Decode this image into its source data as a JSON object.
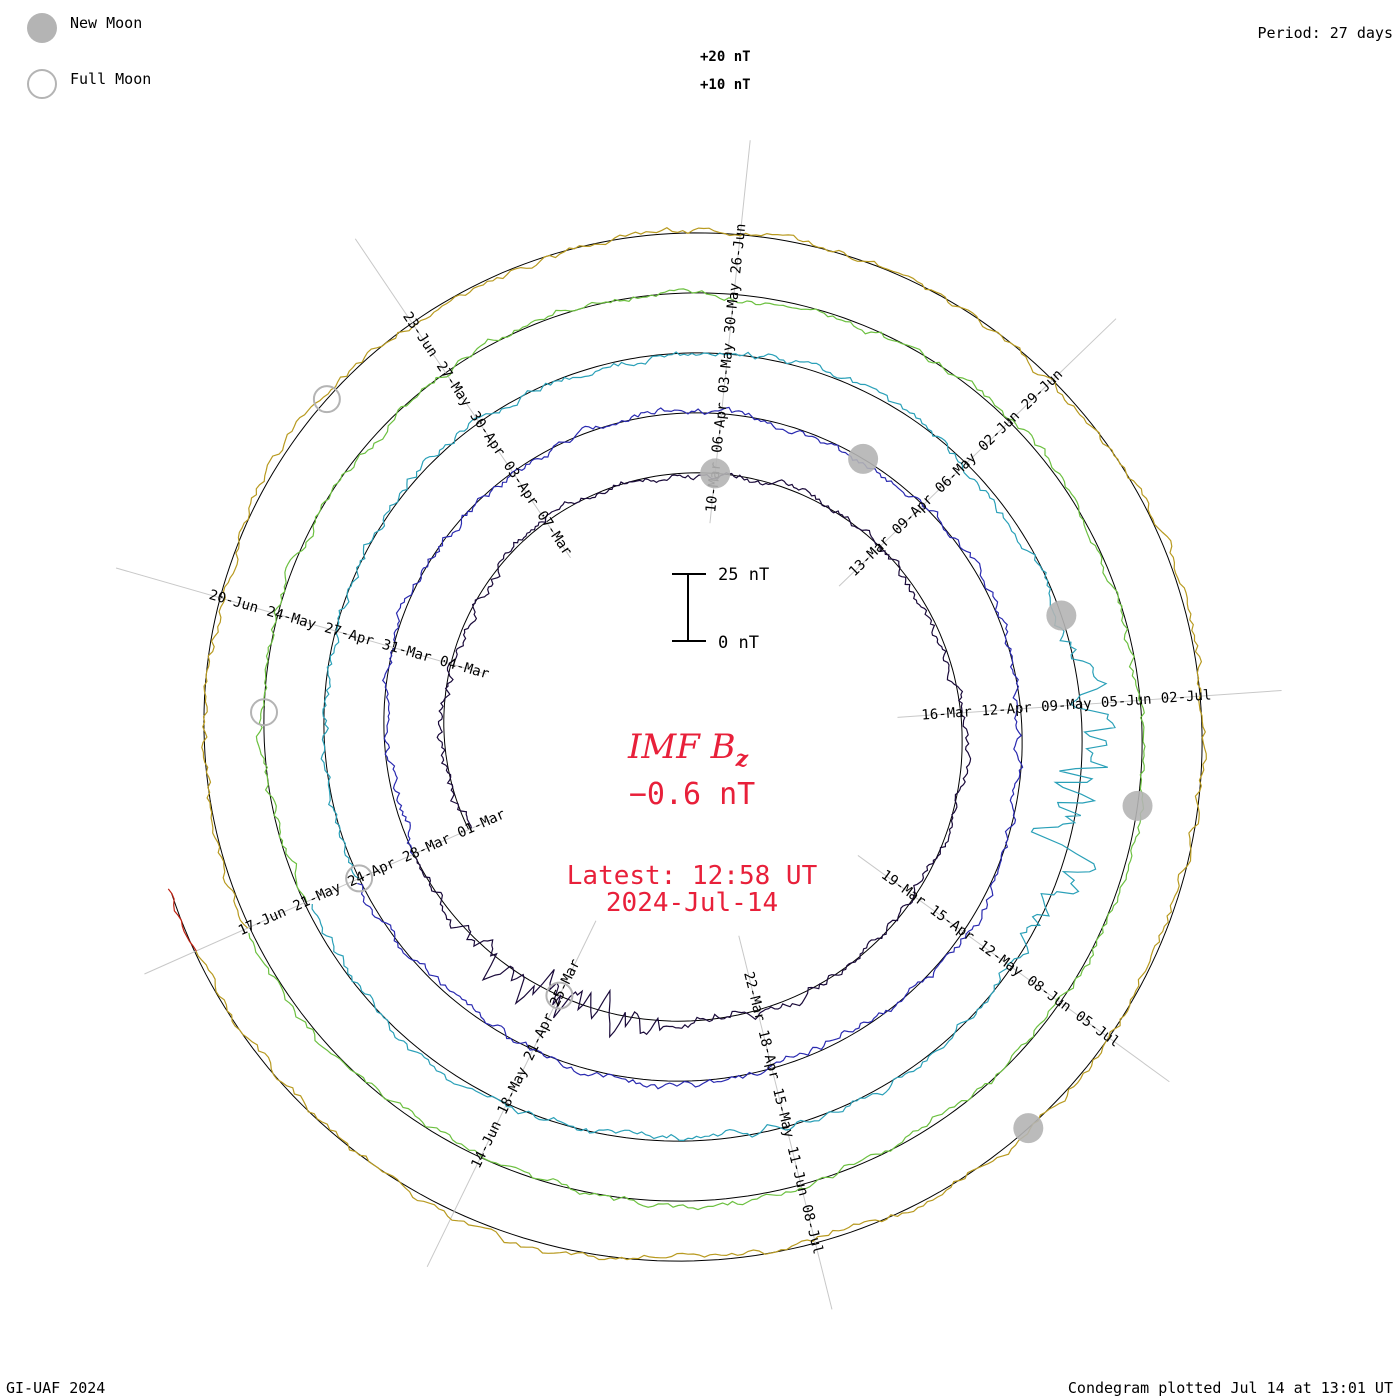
{
  "legend": {
    "new_moon": "New Moon",
    "full_moon": "Full Moon",
    "period": "Period: 27 days"
  },
  "ring_scale": {
    "plus20": "+20 nT",
    "plus10": "+10 nT"
  },
  "scale_bar": {
    "top": "25 nT",
    "bottom": "0 nT"
  },
  "center": {
    "title_main": "IMF B",
    "title_sub": "z",
    "value": "−0.6 nT",
    "latest_time": "Latest: 12:58 UT",
    "latest_date": "2024-Jul-14"
  },
  "footer": {
    "left": "GI-UAF 2024",
    "right": "Condegram plotted Jul 14 at 13:01 UT"
  },
  "colors": {
    "rotations": [
      "#1a0a3a",
      "#2a2ab0",
      "#2aa0b8",
      "#6cc040",
      "#b89a20",
      "#c02010"
    ],
    "grid": "#c8c8c8",
    "moon": "#b4b4b4",
    "accent": "#e8203a"
  },
  "chart_data": {
    "type": "condegram",
    "title": "IMF Bz",
    "current_value_nT": -0.6,
    "period_days": 27,
    "date_labels": [
      {
        "ring": 0,
        "text": "01-Mar"
      },
      {
        "ring": 0,
        "text": "04-Mar"
      },
      {
        "ring": 0,
        "text": "07-Mar"
      },
      {
        "ring": 0,
        "text": "10-Mar"
      },
      {
        "ring": 0,
        "text": "13-Mar"
      },
      {
        "ring": 0,
        "text": "16-Mar"
      },
      {
        "ring": 0,
        "text": "19-Mar"
      },
      {
        "ring": 0,
        "text": "22-Mar"
      },
      {
        "ring": 0,
        "text": "25-Mar"
      },
      {
        "ring": 1,
        "text": "28-Mar"
      },
      {
        "ring": 1,
        "text": "31-Mar"
      },
      {
        "ring": 1,
        "text": "03-Apr"
      },
      {
        "ring": 1,
        "text": "06-Apr"
      },
      {
        "ring": 1,
        "text": "09-Apr"
      },
      {
        "ring": 1,
        "text": "12-Apr"
      },
      {
        "ring": 1,
        "text": "15-Apr"
      },
      {
        "ring": 1,
        "text": "18-Apr"
      },
      {
        "ring": 1,
        "text": "21-Apr"
      },
      {
        "ring": 2,
        "text": "24-Apr"
      },
      {
        "ring": 2,
        "text": "27-Apr"
      },
      {
        "ring": 2,
        "text": "30-Apr"
      },
      {
        "ring": 2,
        "text": "03-May"
      },
      {
        "ring": 2,
        "text": "06-May"
      },
      {
        "ring": 2,
        "text": "09-May"
      },
      {
        "ring": 2,
        "text": "12-May"
      },
      {
        "ring": 2,
        "text": "15-May"
      },
      {
        "ring": 2,
        "text": "18-May"
      },
      {
        "ring": 3,
        "text": "21-May"
      },
      {
        "ring": 3,
        "text": "24-May"
      },
      {
        "ring": 3,
        "text": "27-May"
      },
      {
        "ring": 3,
        "text": "30-May"
      },
      {
        "ring": 3,
        "text": "02-Jun"
      },
      {
        "ring": 3,
        "text": "05-Jun"
      },
      {
        "ring": 3,
        "text": "08-Jun"
      },
      {
        "ring": 3,
        "text": "11-Jun"
      },
      {
        "ring": 3,
        "text": "14-Jun"
      },
      {
        "ring": 4,
        "text": "17-Jun"
      },
      {
        "ring": 4,
        "text": "20-Jun"
      },
      {
        "ring": 4,
        "text": "23-Jun"
      },
      {
        "ring": 4,
        "text": "26-Jun"
      },
      {
        "ring": 4,
        "text": "29-Jun"
      },
      {
        "ring": 4,
        "text": "02-Jul"
      },
      {
        "ring": 4,
        "text": "05-Jul"
      },
      {
        "ring": 4,
        "text": "08-Jul"
      }
    ],
    "new_moon_dates": [
      "10-Mar",
      "08-Apr",
      "08-May",
      "06-Jun",
      "06-Jul"
    ],
    "full_moon_dates": [
      "25-Mar",
      "24-Apr",
      "23-May",
      "22-Jun"
    ],
    "data_start": "2024-Mar-01",
    "data_end": "2024-Jul-14 12:58 UT"
  }
}
